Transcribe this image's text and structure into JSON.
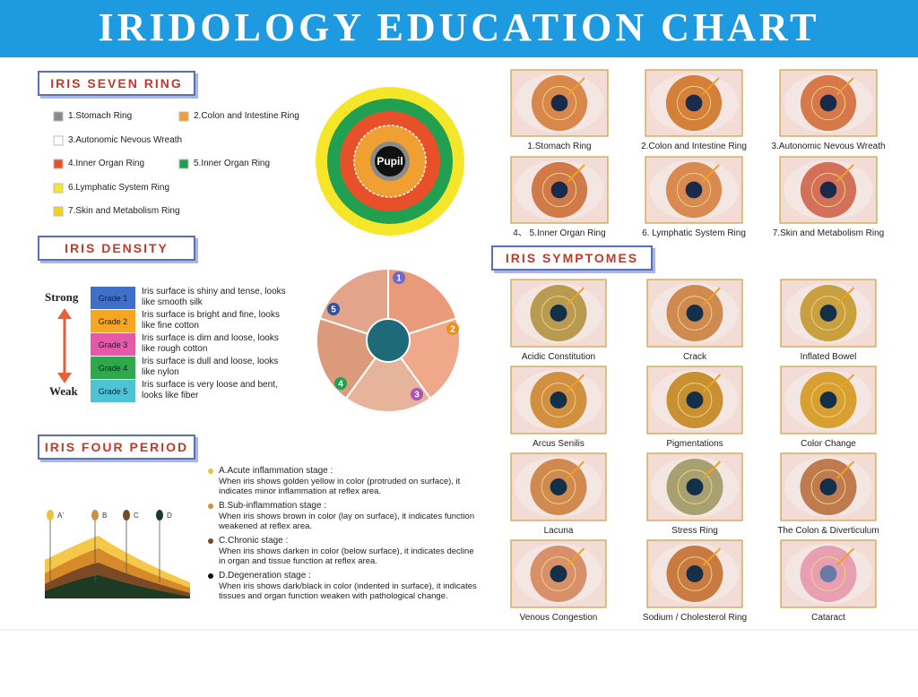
{
  "title": "IRIDOLOGY EDUCATION CHART",
  "seven_ring": {
    "heading": "IRIS SEVEN RING",
    "items": [
      "1.Stomach Ring",
      "2.Colon and Intestine Ring",
      "3.Autonomic Nevous Wreath",
      "4.Inner Organ Ring",
      "5.Inner Organ Ring",
      "6.Lymphatic System Ring",
      "7.Skin and Metabolism Ring"
    ],
    "pupil": "Pupil"
  },
  "density": {
    "heading": "IRIS DENSITY",
    "strong": "Strong",
    "weak": "Weak",
    "grades": [
      {
        "grade": "Grade 1",
        "description": "Iris surface is shiny and tense, looks like smooth silk"
      },
      {
        "grade": "Grade 2",
        "description": "Iris surface is bright and fine, looks like fine cotton"
      },
      {
        "grade": "Grade 3",
        "description": "Iris surface is dim and loose, looks like rough cotton"
      },
      {
        "grade": "Grade 4",
        "description": "Iris surface is dull and loose, looks like nylon"
      },
      {
        "grade": "Grade 5",
        "description": "Iris surface is very loose and bent, looks like fiber"
      }
    ],
    "wheel_labels": [
      "1",
      "2",
      "3",
      "4",
      "5"
    ]
  },
  "four_period": {
    "heading": "IRIS FOUR PERIOD",
    "markers": [
      "A'",
      "B",
      "C",
      "D"
    ],
    "stages": [
      {
        "title": "A.Acute inflammation stage :",
        "text": "When iris shows golden yellow in color (protruded on surface), it indicates minor inflammation at reflex area."
      },
      {
        "title": "B.Sub-inflammation stage :",
        "text": "When iris shows brown in color (lay on surface), it indicates function weakened at reflex area."
      },
      {
        "title": "C.Chronic stage :",
        "text": "When iris shows darken in color (below surface), it indicates decline in organ and tissue function at reflex area."
      },
      {
        "title": "D.Degeneration stage :",
        "text": "When iris shows dark/black in color (indented in surface), it indicates tissues and organ function weaken with pathological change."
      }
    ]
  },
  "ring_photos": {
    "captions": [
      "1.Stomach Ring",
      "2.Colon and Intestine Ring",
      "3.Autonomic Nevous Wreath",
      "4、 5.Inner Organ Ring",
      "6. Lymphatic System Ring",
      "7.Skin and Metabolism Ring"
    ]
  },
  "symptoms": {
    "heading": "IRIS SYMPTOMES",
    "captions": [
      "Acidic Constitution",
      "Crack",
      "Inflated Bowel",
      "Arcus Senilis",
      "Pigmentations",
      "Color Change",
      "Lacuna",
      "Stress Ring",
      "The Colon & Diverticulum",
      "Venous Congestion",
      "Sodium / Cholesterol Ring",
      "Cataract"
    ]
  }
}
